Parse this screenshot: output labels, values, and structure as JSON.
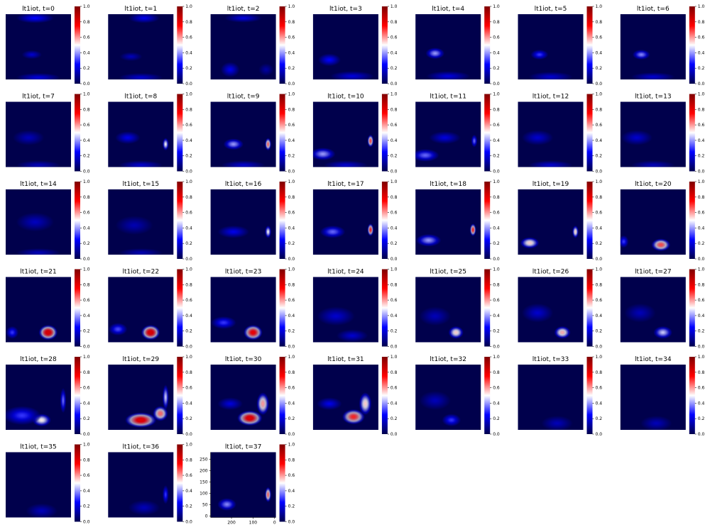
{
  "figure": {
    "background": "#ffffff"
  },
  "chart_data": {
    "type": "heatmap",
    "colormap": {
      "name": "seismic",
      "stops": [
        "#00004c",
        "#0000ff",
        "#ffffff",
        "#ff0000",
        "#800000"
      ]
    },
    "colorbar_ticks": [
      "0.0",
      "0.2",
      "0.4",
      "0.6",
      "0.8",
      "1.0"
    ],
    "axes_shown_only_on_last": true,
    "last_x_ticks": [
      "200",
      "100",
      "0"
    ],
    "last_y_ticks": [
      "0",
      "50",
      "100",
      "150",
      "200",
      "250"
    ],
    "panels": [
      {
        "title": "lt1iot, t=0",
        "blobs": [
          {
            "x": 0.45,
            "y": 0.06,
            "sx": 0.3,
            "sy": 0.08,
            "v": 0.25
          },
          {
            "x": 0.4,
            "y": 0.62,
            "sx": 0.16,
            "sy": 0.07,
            "v": 0.18
          },
          {
            "x": 0.5,
            "y": 0.97,
            "sx": 0.35,
            "sy": 0.07,
            "v": 0.2
          }
        ]
      },
      {
        "title": "lt1iot, t=1",
        "blobs": [
          {
            "x": 0.55,
            "y": 0.06,
            "sx": 0.25,
            "sy": 0.08,
            "v": 0.22
          },
          {
            "x": 0.35,
            "y": 0.65,
            "sx": 0.18,
            "sy": 0.07,
            "v": 0.15
          },
          {
            "x": 0.5,
            "y": 0.97,
            "sx": 0.35,
            "sy": 0.07,
            "v": 0.18
          }
        ]
      },
      {
        "title": "lt1iot, t=2",
        "blobs": [
          {
            "x": 0.5,
            "y": 0.06,
            "sx": 0.3,
            "sy": 0.07,
            "v": 0.2
          },
          {
            "x": 0.3,
            "y": 0.85,
            "sx": 0.15,
            "sy": 0.12,
            "v": 0.22
          },
          {
            "x": 0.85,
            "y": 0.85,
            "sx": 0.12,
            "sy": 0.1,
            "v": 0.12
          }
        ]
      },
      {
        "title": "lt1iot, t=3",
        "blobs": [
          {
            "x": 0.25,
            "y": 0.7,
            "sx": 0.18,
            "sy": 0.1,
            "v": 0.25
          },
          {
            "x": 0.6,
            "y": 0.95,
            "sx": 0.35,
            "sy": 0.08,
            "v": 0.2
          }
        ]
      },
      {
        "title": "lt1iot, t=4",
        "blobs": [
          {
            "x": 0.3,
            "y": 0.6,
            "sx": 0.15,
            "sy": 0.09,
            "v": 0.4
          },
          {
            "x": 0.5,
            "y": 0.95,
            "sx": 0.35,
            "sy": 0.08,
            "v": 0.2
          }
        ]
      },
      {
        "title": "lt1iot, t=5",
        "blobs": [
          {
            "x": 0.33,
            "y": 0.62,
            "sx": 0.14,
            "sy": 0.08,
            "v": 0.3
          },
          {
            "x": 0.5,
            "y": 0.96,
            "sx": 0.35,
            "sy": 0.08,
            "v": 0.18
          }
        ]
      },
      {
        "title": "lt1iot, t=6",
        "blobs": [
          {
            "x": 0.32,
            "y": 0.62,
            "sx": 0.14,
            "sy": 0.08,
            "v": 0.38
          },
          {
            "x": 0.5,
            "y": 0.96,
            "sx": 0.35,
            "sy": 0.07,
            "v": 0.18
          }
        ]
      },
      {
        "title": "lt1iot, t=7",
        "blobs": [
          {
            "x": 0.35,
            "y": 0.55,
            "sx": 0.25,
            "sy": 0.12,
            "v": 0.15
          },
          {
            "x": 0.5,
            "y": 0.97,
            "sx": 0.35,
            "sy": 0.07,
            "v": 0.15
          }
        ]
      },
      {
        "title": "lt1iot, t=8",
        "blobs": [
          {
            "x": 0.3,
            "y": 0.55,
            "sx": 0.2,
            "sy": 0.1,
            "v": 0.22
          },
          {
            "x": 0.88,
            "y": 0.65,
            "sx": 0.05,
            "sy": 0.1,
            "v": 0.5
          },
          {
            "x": 0.5,
            "y": 0.97,
            "sx": 0.35,
            "sy": 0.07,
            "v": 0.18
          }
        ]
      },
      {
        "title": "lt1iot, t=9",
        "blobs": [
          {
            "x": 0.35,
            "y": 0.65,
            "sx": 0.16,
            "sy": 0.09,
            "v": 0.4
          },
          {
            "x": 0.88,
            "y": 0.65,
            "sx": 0.05,
            "sy": 0.1,
            "v": 0.65
          },
          {
            "x": 0.5,
            "y": 0.97,
            "sx": 0.35,
            "sy": 0.07,
            "v": 0.18
          }
        ]
      },
      {
        "title": "lt1iot, t=10",
        "blobs": [
          {
            "x": 0.15,
            "y": 0.8,
            "sx": 0.2,
            "sy": 0.1,
            "v": 0.4
          },
          {
            "x": 0.88,
            "y": 0.6,
            "sx": 0.05,
            "sy": 0.1,
            "v": 0.68
          },
          {
            "x": 0.5,
            "y": 0.97,
            "sx": 0.35,
            "sy": 0.07,
            "v": 0.18
          }
        ]
      },
      {
        "title": "lt1iot, t=11",
        "blobs": [
          {
            "x": 0.15,
            "y": 0.82,
            "sx": 0.22,
            "sy": 0.1,
            "v": 0.35
          },
          {
            "x": 0.45,
            "y": 0.55,
            "sx": 0.25,
            "sy": 0.1,
            "v": 0.2
          },
          {
            "x": 0.9,
            "y": 0.6,
            "sx": 0.05,
            "sy": 0.1,
            "v": 0.35
          }
        ]
      },
      {
        "title": "lt1iot, t=12",
        "blobs": [
          {
            "x": 0.3,
            "y": 0.55,
            "sx": 0.25,
            "sy": 0.12,
            "v": 0.18
          },
          {
            "x": 0.5,
            "y": 0.97,
            "sx": 0.35,
            "sy": 0.07,
            "v": 0.18
          }
        ]
      },
      {
        "title": "lt1iot, t=13",
        "blobs": [
          {
            "x": 0.25,
            "y": 0.55,
            "sx": 0.25,
            "sy": 0.12,
            "v": 0.18
          },
          {
            "x": 0.5,
            "y": 0.97,
            "sx": 0.35,
            "sy": 0.07,
            "v": 0.15
          }
        ]
      },
      {
        "title": "lt1iot, t=14",
        "blobs": [
          {
            "x": 0.45,
            "y": 0.5,
            "sx": 0.3,
            "sy": 0.15,
            "v": 0.16
          },
          {
            "x": 0.5,
            "y": 0.97,
            "sx": 0.35,
            "sy": 0.07,
            "v": 0.15
          }
        ]
      },
      {
        "title": "lt1iot, t=15",
        "blobs": [
          {
            "x": 0.4,
            "y": 0.55,
            "sx": 0.3,
            "sy": 0.15,
            "v": 0.14
          },
          {
            "x": 0.5,
            "y": 0.97,
            "sx": 0.35,
            "sy": 0.07,
            "v": 0.14
          }
        ]
      },
      {
        "title": "lt1iot, t=16",
        "blobs": [
          {
            "x": 0.35,
            "y": 0.65,
            "sx": 0.25,
            "sy": 0.1,
            "v": 0.22
          },
          {
            "x": 0.88,
            "y": 0.65,
            "sx": 0.05,
            "sy": 0.1,
            "v": 0.5
          }
        ]
      },
      {
        "title": "lt1iot, t=17",
        "blobs": [
          {
            "x": 0.3,
            "y": 0.65,
            "sx": 0.2,
            "sy": 0.1,
            "v": 0.35
          },
          {
            "x": 0.88,
            "y": 0.62,
            "sx": 0.05,
            "sy": 0.1,
            "v": 0.72
          }
        ]
      },
      {
        "title": "lt1iot, t=18",
        "blobs": [
          {
            "x": 0.2,
            "y": 0.78,
            "sx": 0.2,
            "sy": 0.1,
            "v": 0.4
          },
          {
            "x": 0.88,
            "y": 0.62,
            "sx": 0.05,
            "sy": 0.1,
            "v": 0.72
          }
        ]
      },
      {
        "title": "lt1iot, t=19",
        "blobs": [
          {
            "x": 0.18,
            "y": 0.82,
            "sx": 0.15,
            "sy": 0.09,
            "v": 0.55
          },
          {
            "x": 0.88,
            "y": 0.65,
            "sx": 0.05,
            "sy": 0.1,
            "v": 0.55
          }
        ]
      },
      {
        "title": "lt1iot, t=20",
        "blobs": [
          {
            "x": 0.62,
            "y": 0.85,
            "sx": 0.15,
            "sy": 0.1,
            "v": 0.68
          },
          {
            "x": 0.05,
            "y": 0.8,
            "sx": 0.08,
            "sy": 0.1,
            "v": 0.3
          }
        ]
      },
      {
        "title": "lt1iot, t=21",
        "blobs": [
          {
            "x": 0.65,
            "y": 0.85,
            "sx": 0.15,
            "sy": 0.12,
            "v": 0.82
          },
          {
            "x": 0.1,
            "y": 0.85,
            "sx": 0.1,
            "sy": 0.1,
            "v": 0.3
          }
        ]
      },
      {
        "title": "lt1iot, t=22",
        "blobs": [
          {
            "x": 0.65,
            "y": 0.85,
            "sx": 0.15,
            "sy": 0.12,
            "v": 0.82
          },
          {
            "x": 0.15,
            "y": 0.8,
            "sx": 0.15,
            "sy": 0.1,
            "v": 0.32
          }
        ]
      },
      {
        "title": "lt1iot, t=23",
        "blobs": [
          {
            "x": 0.65,
            "y": 0.85,
            "sx": 0.15,
            "sy": 0.12,
            "v": 0.78
          },
          {
            "x": 0.2,
            "y": 0.7,
            "sx": 0.2,
            "sy": 0.1,
            "v": 0.3
          }
        ]
      },
      {
        "title": "lt1iot, t=24",
        "blobs": [
          {
            "x": 0.35,
            "y": 0.6,
            "sx": 0.3,
            "sy": 0.15,
            "v": 0.18
          },
          {
            "x": 0.6,
            "y": 0.9,
            "sx": 0.25,
            "sy": 0.1,
            "v": 0.18
          }
        ]
      },
      {
        "title": "lt1iot, t=25",
        "blobs": [
          {
            "x": 0.62,
            "y": 0.85,
            "sx": 0.12,
            "sy": 0.1,
            "v": 0.55
          },
          {
            "x": 0.3,
            "y": 0.6,
            "sx": 0.25,
            "sy": 0.15,
            "v": 0.15
          }
        ]
      },
      {
        "title": "lt1iot, t=26",
        "blobs": [
          {
            "x": 0.68,
            "y": 0.85,
            "sx": 0.13,
            "sy": 0.1,
            "v": 0.58
          },
          {
            "x": 0.3,
            "y": 0.55,
            "sx": 0.25,
            "sy": 0.15,
            "v": 0.18
          }
        ]
      },
      {
        "title": "lt1iot, t=27",
        "blobs": [
          {
            "x": 0.65,
            "y": 0.85,
            "sx": 0.15,
            "sy": 0.1,
            "v": 0.45
          },
          {
            "x": 0.3,
            "y": 0.55,
            "sx": 0.25,
            "sy": 0.15,
            "v": 0.15
          }
        ]
      },
      {
        "title": "lt1iot, t=28",
        "blobs": [
          {
            "x": 0.55,
            "y": 0.85,
            "sx": 0.15,
            "sy": 0.1,
            "v": 0.52
          },
          {
            "x": 0.25,
            "y": 0.78,
            "sx": 0.3,
            "sy": 0.15,
            "v": 0.3
          },
          {
            "x": 0.88,
            "y": 0.55,
            "sx": 0.05,
            "sy": 0.2,
            "v": 0.35
          }
        ]
      },
      {
        "title": "lt1iot, t=29",
        "blobs": [
          {
            "x": 0.5,
            "y": 0.85,
            "sx": 0.25,
            "sy": 0.12,
            "v": 0.8
          },
          {
            "x": 0.8,
            "y": 0.75,
            "sx": 0.12,
            "sy": 0.12,
            "v": 0.65
          },
          {
            "x": 0.88,
            "y": 0.5,
            "sx": 0.05,
            "sy": 0.2,
            "v": 0.45
          }
        ]
      },
      {
        "title": "lt1iot, t=30",
        "blobs": [
          {
            "x": 0.6,
            "y": 0.82,
            "sx": 0.2,
            "sy": 0.12,
            "v": 0.8
          },
          {
            "x": 0.8,
            "y": 0.6,
            "sx": 0.1,
            "sy": 0.18,
            "v": 0.6
          },
          {
            "x": 0.3,
            "y": 0.6,
            "sx": 0.2,
            "sy": 0.1,
            "v": 0.2
          }
        ]
      },
      {
        "title": "lt1iot, t=31",
        "blobs": [
          {
            "x": 0.62,
            "y": 0.8,
            "sx": 0.18,
            "sy": 0.12,
            "v": 0.72
          },
          {
            "x": 0.8,
            "y": 0.6,
            "sx": 0.1,
            "sy": 0.18,
            "v": 0.55
          },
          {
            "x": 0.25,
            "y": 0.6,
            "sx": 0.2,
            "sy": 0.1,
            "v": 0.22
          }
        ]
      },
      {
        "title": "lt1iot, t=32",
        "blobs": [
          {
            "x": 0.55,
            "y": 0.85,
            "sx": 0.15,
            "sy": 0.1,
            "v": 0.3
          },
          {
            "x": 0.3,
            "y": 0.55,
            "sx": 0.25,
            "sy": 0.15,
            "v": 0.15
          }
        ]
      },
      {
        "title": "lt1iot, t=33",
        "blobs": [
          {
            "x": 0.6,
            "y": 0.9,
            "sx": 0.25,
            "sy": 0.12,
            "v": 0.15
          }
        ]
      },
      {
        "title": "lt1iot, t=34",
        "blobs": [
          {
            "x": 0.55,
            "y": 0.9,
            "sx": 0.25,
            "sy": 0.12,
            "v": 0.15
          }
        ]
      },
      {
        "title": "lt1iot, t=35",
        "blobs": [
          {
            "x": 0.55,
            "y": 0.9,
            "sx": 0.25,
            "sy": 0.12,
            "v": 0.15
          }
        ]
      },
      {
        "title": "lt1iot, t=36",
        "blobs": [
          {
            "x": 0.55,
            "y": 0.85,
            "sx": 0.25,
            "sy": 0.12,
            "v": 0.15
          },
          {
            "x": 0.88,
            "y": 0.65,
            "sx": 0.05,
            "sy": 0.15,
            "v": 0.3
          }
        ]
      },
      {
        "title": "lt1iot, t=37",
        "blobs": [
          {
            "x": 0.25,
            "y": 0.8,
            "sx": 0.15,
            "sy": 0.1,
            "v": 0.38
          },
          {
            "x": 0.88,
            "y": 0.65,
            "sx": 0.05,
            "sy": 0.12,
            "v": 0.65
          }
        ]
      }
    ]
  }
}
